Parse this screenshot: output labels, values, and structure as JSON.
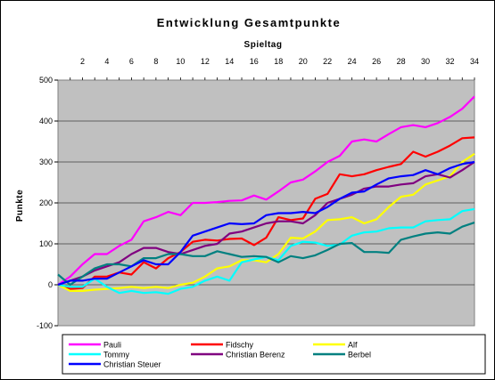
{
  "chart_data": {
    "type": "line",
    "title": "Entwicklung Gesamtpunkte",
    "xlabel": "Spieltag",
    "ylabel": "Punkte",
    "xlim": [
      0,
      34
    ],
    "ylim": [
      -100,
      500
    ],
    "x_ticks": [
      "2",
      "4",
      "6",
      "8",
      "10",
      "12",
      "14",
      "16",
      "18",
      "20",
      "22",
      "24",
      "26",
      "28",
      "30",
      "32",
      "34"
    ],
    "y_ticks": [
      "-100",
      "0",
      "100",
      "200",
      "300",
      "400",
      "500"
    ],
    "grid": "horizontal",
    "background": "#c0c0c0",
    "legend_position": "bottom",
    "x": [
      0,
      1,
      2,
      3,
      4,
      5,
      6,
      7,
      8,
      9,
      10,
      11,
      12,
      13,
      14,
      15,
      16,
      17,
      18,
      19,
      20,
      21,
      22,
      23,
      24,
      25,
      26,
      27,
      28,
      29,
      30,
      31,
      32,
      33,
      34
    ],
    "series": [
      {
        "name": "Pauli",
        "color": "#ff00ff",
        "values": [
          0,
          20,
          50,
          75,
          75,
          95,
          110,
          155,
          165,
          178,
          170,
          200,
          200,
          202,
          205,
          206,
          218,
          208,
          228,
          250,
          257,
          277,
          300,
          315,
          350,
          355,
          350,
          368,
          385,
          390,
          385,
          395,
          410,
          430,
          460
        ]
      },
      {
        "name": "Fidschy",
        "color": "#ff0000",
        "values": [
          0,
          -10,
          -8,
          20,
          20,
          30,
          25,
          55,
          40,
          65,
          80,
          105,
          110,
          108,
          112,
          113,
          97,
          115,
          165,
          158,
          162,
          210,
          222,
          270,
          265,
          270,
          280,
          288,
          295,
          325,
          313,
          325,
          340,
          358,
          360
        ]
      },
      {
        "name": "Alf",
        "color": "#ffff00",
        "values": [
          0,
          -15,
          -15,
          -12,
          -10,
          -8,
          -5,
          -8,
          -5,
          -8,
          0,
          5,
          20,
          40,
          45,
          60,
          60,
          55,
          75,
          115,
          113,
          130,
          158,
          160,
          165,
          150,
          160,
          190,
          215,
          220,
          245,
          255,
          265,
          300,
          320
        ]
      },
      {
        "name": "Tommy",
        "color": "#00ffff",
        "values": [
          0,
          -5,
          -5,
          15,
          -5,
          -20,
          -15,
          -20,
          -18,
          -22,
          -10,
          -5,
          10,
          20,
          10,
          55,
          62,
          68,
          60,
          95,
          105,
          103,
          95,
          98,
          120,
          128,
          130,
          138,
          140,
          140,
          155,
          158,
          160,
          180,
          185
        ]
      },
      {
        "name": "Christian Berenz",
        "color": "#800080",
        "values": [
          0,
          10,
          20,
          35,
          45,
          55,
          75,
          90,
          90,
          80,
          75,
          85,
          95,
          100,
          125,
          130,
          140,
          150,
          155,
          155,
          150,
          170,
          200,
          210,
          220,
          235,
          240,
          240,
          245,
          248,
          265,
          270,
          262,
          280,
          300
        ]
      },
      {
        "name": "Berbel",
        "color": "#008080",
        "values": [
          25,
          0,
          20,
          40,
          50,
          50,
          45,
          65,
          65,
          75,
          75,
          70,
          70,
          82,
          75,
          68,
          70,
          68,
          55,
          70,
          65,
          72,
          85,
          100,
          102,
          80,
          80,
          78,
          110,
          118,
          125,
          128,
          125,
          142,
          152
        ]
      },
      {
        "name": "Christian Steuer",
        "color": "#0000ff",
        "values": [
          0,
          10,
          10,
          15,
          15,
          30,
          45,
          60,
          50,
          50,
          80,
          120,
          130,
          140,
          150,
          148,
          150,
          170,
          175,
          175,
          178,
          175,
          190,
          210,
          225,
          228,
          245,
          260,
          265,
          268,
          280,
          270,
          285,
          295,
          300
        ]
      }
    ]
  }
}
